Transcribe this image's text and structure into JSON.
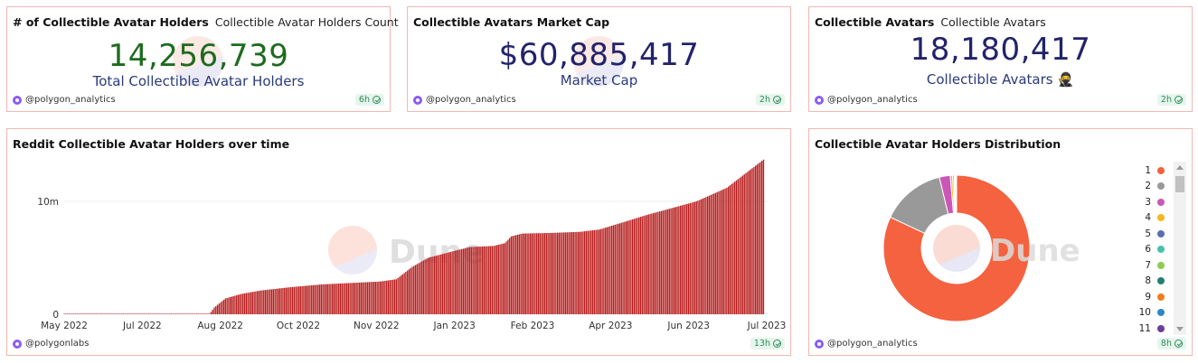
{
  "cards": {
    "holders": {
      "title": "# of Collectible Avatar Holders",
      "subtitle": "Collectible Avatar Holders Count",
      "value": "14,256,739",
      "label": "Total Collectible Avatar Holders",
      "author": "@polygon_analytics",
      "age": "6h",
      "value_color": "#1e6b1e"
    },
    "market_cap": {
      "title": "Collectible Avatars Market Cap",
      "value": "$60,885,417",
      "label": "Market Cap",
      "author": "@polygon_analytics",
      "age": "2h",
      "value_color": "#23236b"
    },
    "avatars": {
      "title": "Collectible Avatars",
      "subtitle": "Collectible Avatars",
      "value": "18,180,417",
      "label": "Collectible Avatars",
      "emoji": "🥷",
      "author": "@polygon_analytics",
      "age": "2h",
      "value_color": "#23236b"
    },
    "over_time": {
      "title": "Reddit Collectible Avatar Holders over time",
      "author": "@polygonlabs",
      "age": "13h",
      "watermark": "Dune"
    },
    "distribution": {
      "title": "Collectible Avatar Holders Distribution",
      "author": "@polygon_analytics",
      "age": "8h",
      "watermark": "Dune"
    }
  },
  "chart_data": [
    {
      "type": "bar",
      "title": "Reddit Collectible Avatar Holders over time",
      "color": "#b71c1c",
      "x_ticks": [
        "May 2022",
        "Jul 2022",
        "Aug 2022",
        "Oct 2022",
        "Nov 2022",
        "Jan 2023",
        "Feb 2023",
        "Apr 2023",
        "Jun 2023",
        "Jul 2023"
      ],
      "y_ticks": [
        "0",
        "10m"
      ],
      "ylim": [
        0,
        14000000
      ],
      "x_range": [
        "2022-05-01",
        "2023-07-15"
      ],
      "series": [
        {
          "points": [
            [
              "2022-05-01",
              0
            ],
            [
              "2022-07-31",
              0
            ],
            [
              "2022-08-03",
              600000
            ],
            [
              "2022-08-10",
              1400000
            ],
            [
              "2022-08-20",
              1800000
            ],
            [
              "2022-09-01",
              2100000
            ],
            [
              "2022-09-20",
              2400000
            ],
            [
              "2022-10-10",
              2650000
            ],
            [
              "2022-11-01",
              2800000
            ],
            [
              "2022-11-15",
              2900000
            ],
            [
              "2022-11-25",
              3100000
            ],
            [
              "2022-12-05",
              4200000
            ],
            [
              "2022-12-15",
              5000000
            ],
            [
              "2022-12-31",
              5600000
            ],
            [
              "2023-01-10",
              5950000
            ],
            [
              "2023-01-25",
              6050000
            ],
            [
              "2023-02-01",
              6300000
            ],
            [
              "2023-02-05",
              6900000
            ],
            [
              "2023-02-12",
              7150000
            ],
            [
              "2023-03-01",
              7200000
            ],
            [
              "2023-03-20",
              7300000
            ],
            [
              "2023-04-01",
              7500000
            ],
            [
              "2023-04-15",
              8100000
            ],
            [
              "2023-05-01",
              8800000
            ],
            [
              "2023-06-01",
              10000000
            ],
            [
              "2023-06-20",
              11200000
            ],
            [
              "2023-07-01",
              12400000
            ],
            [
              "2023-07-13",
              13700000
            ]
          ]
        }
      ]
    },
    {
      "type": "pie",
      "title": "Collectible Avatar Holders Distribution",
      "donut": true,
      "legend_position": "right",
      "labels": [
        "1",
        "2",
        "3",
        "4",
        "5",
        "6",
        "7",
        "8",
        "9",
        "10",
        "11"
      ],
      "colors": [
        "#f4623f",
        "#999999",
        "#cc55b8",
        "#f4b81b",
        "#5a6fb0",
        "#48c1a8",
        "#8ccc4e",
        "#237f72",
        "#ef7d1e",
        "#2f86c8",
        "#6c3d9a"
      ],
      "values": [
        82.0,
        14.2,
        2.4,
        0.5,
        0.3,
        0.2,
        0.1,
        0.1,
        0.1,
        0.05,
        0.05
      ]
    }
  ]
}
